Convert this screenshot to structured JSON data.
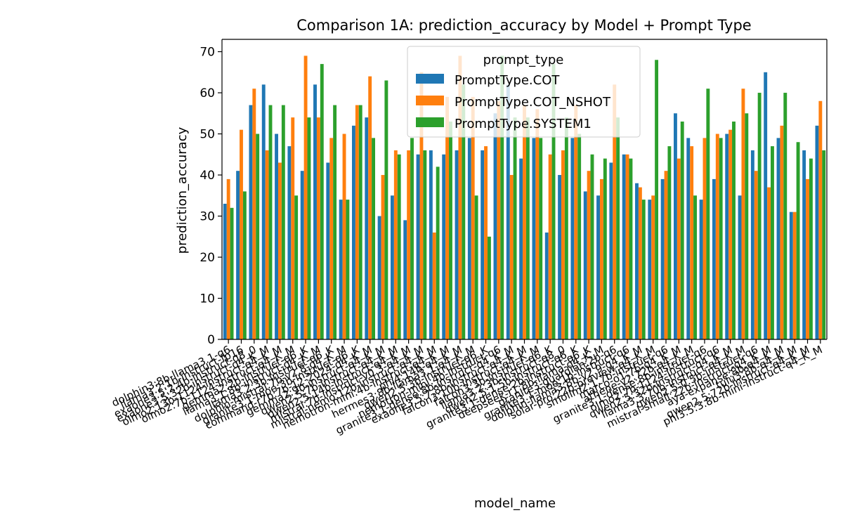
{
  "chart_data": {
    "type": "bar",
    "title": "Comparison 1A: prediction_accuracy by Model + Prompt Type",
    "xlabel": "model_name",
    "ylabel": "prediction_accuracy",
    "ylim": [
      0,
      73
    ],
    "yticks": [
      0,
      10,
      20,
      30,
      40,
      50,
      60,
      70
    ],
    "legend": {
      "title": "prompt_type",
      "placement": "top-center"
    },
    "categories": [
      "dolphin3:8b-llama3.1-q6",
      "llama3.2:1b-instruct-fp16",
      "exaone3.5:2.4b-instruct-q8_0",
      "exaone3.5:32b-instruct-q4_K_M",
      "olmo2:13b-1124-instruct-q4_K_M",
      "olmo2:7b-1124-instruct-q4_K_M",
      "gemma2:2b-instruct-q6_K",
      "llama3.1:8b-instruct-q4_K_M",
      "llama3.2:3b-instruct-q6_K",
      "dolphin-mistral:7b-v2.8-q4_K_M",
      "granite3.1-moe:3b-instruct-q6_K",
      "command-r7b:7b-12-2024-q4_K_M",
      "gemma2:9b-instruct-q4_K_M",
      "qwen2.5:7b-instruct-q4_K_M",
      "qwen2.5:14b-instruct-q4_K_M",
      "mistral:7b-instruct-v0.3-q4_K_M",
      "mistral-nemo:12b-instruct-q4_K_M",
      "nemotron-mini:4b-instruct-q4_K_M",
      "phi4:14b-q4_K_M",
      "hermes3:8b-llama3.1-q4_K_M",
      "qwen2.5:3b-instruct-q6_K",
      "nemotron-mini:4b-instruct-q6",
      "granite3.1-dense:8b-instruct-q4_K_M",
      "exaone3.5:7.8b-instruct-q4_K_M",
      "falcon3:10b-instruct-q4_K_M",
      "falcon3:3b-instruct-q6_K",
      "llama3.2:3b-instruct-q8_0",
      "qwen2.5:1.5b-instruct-q6_K",
      "granite3.1-dense:2b-instruct-q6_K",
      "deepseek-r1:8b-llama-q4_K_M",
      "granite3-guardian:2b-q6",
      "granite3.1-moe:1b-instruct-q6",
      "dolphin-llama3:8b-v2.9-q4_K_M",
      "solar-pro:22b-preview-q4_K_M",
      "smollm2:1.7b-instruct-q6",
      "marco-o1:7b-q4_K_M",
      "athene-v2:72b-q4_K_M",
      "granite3.1-dense:8b-instruct-q6",
      "olmo2:7b-1124-instruct-q6",
      "qwen2.5:32b-instruct-q4_K_M",
      "llama3.3:70b-instruct-q4_K_M",
      "qwen2.5:0.5b-instruct-q6",
      "mistral-small:22b-instruct-q4_K_M",
      "aya-expanse:8b-q4_K_M",
      "tulu3:8b-q4_K_M",
      "qwen2.5:72b-instruct-q4_K_M",
      "phi3.5:3.8b-mini-instruct-q4_K_M"
    ],
    "series": [
      {
        "name": "PromptType.COT",
        "color": "#1f77b4",
        "values": [
          33,
          41,
          57,
          62,
          50,
          47,
          41,
          62,
          43,
          34,
          52,
          54,
          30,
          35,
          29,
          45,
          46,
          45,
          46,
          49,
          46,
          55,
          62,
          44,
          49,
          26,
          40,
          49,
          36,
          35,
          43,
          45,
          38,
          34,
          39,
          55,
          49,
          34,
          39,
          50,
          35,
          46,
          65,
          49,
          31,
          46,
          52
        ]
      },
      {
        "name": "PromptType.COT_NSHOT",
        "color": "#ff7f0e",
        "values": [
          39,
          51,
          61,
          46,
          43,
          54,
          69,
          54,
          49,
          50,
          57,
          64,
          40,
          46,
          46,
          65,
          26,
          59,
          69,
          59,
          47,
          58,
          40,
          57,
          56,
          45,
          46,
          57,
          41,
          39,
          62,
          45,
          37,
          35,
          41,
          44,
          47,
          49,
          50,
          51,
          61,
          41,
          37,
          52,
          31,
          39,
          58
        ]
      },
      {
        "name": "PromptType.SYSTEM1",
        "color": "#2ca02c",
        "values": [
          32,
          36,
          50,
          57,
          57,
          35,
          54,
          67,
          57,
          34,
          57,
          49,
          63,
          45,
          49,
          46,
          42,
          53,
          62,
          35,
          25,
          69,
          54,
          54,
          49,
          67,
          54,
          50,
          45,
          44,
          54,
          44,
          34,
          68,
          47,
          53,
          35,
          61,
          49,
          53,
          55,
          60,
          47,
          60,
          48,
          44,
          46
        ]
      }
    ]
  }
}
